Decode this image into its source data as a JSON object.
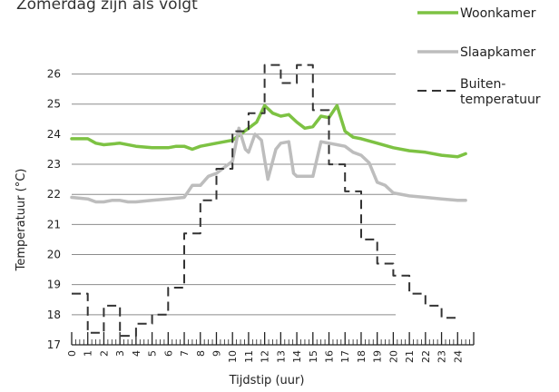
{
  "top_text": "Zomerdag zijn als volgt",
  "colors": {
    "woonkamer": "#7dc243",
    "slaapkamer": "#bdbdbd",
    "buiten": "#333333",
    "grid": "#8c8c8c"
  },
  "chart_data": {
    "type": "line",
    "title": "",
    "xlabel": "Tijdstip (uur)",
    "ylabel": "Temperatuur (°C)",
    "xlim": [
      0,
      25
    ],
    "ylim": [
      17,
      26.5
    ],
    "yticks": [
      17,
      18,
      19,
      20,
      21,
      22,
      23,
      24,
      25,
      26
    ],
    "xticks": [
      0,
      1,
      2,
      3,
      4,
      5,
      6,
      7,
      8,
      9,
      10,
      11,
      12,
      13,
      14,
      15,
      16,
      17,
      18,
      19,
      20,
      21,
      22,
      23,
      24
    ],
    "grid": true,
    "legend": "top-right",
    "series": [
      {
        "name": "Woonkamer",
        "style": "solid",
        "points": [
          [
            0,
            23.85
          ],
          [
            1,
            23.85
          ],
          [
            1.5,
            23.7
          ],
          [
            2,
            23.65
          ],
          [
            3,
            23.7
          ],
          [
            4,
            23.6
          ],
          [
            5,
            23.55
          ],
          [
            6,
            23.55
          ],
          [
            6.5,
            23.6
          ],
          [
            7,
            23.6
          ],
          [
            7.5,
            23.5
          ],
          [
            8,
            23.6
          ],
          [
            9,
            23.7
          ],
          [
            10,
            23.8
          ],
          [
            10.5,
            24.0
          ],
          [
            11,
            24.2
          ],
          [
            11.5,
            24.4
          ],
          [
            12,
            24.95
          ],
          [
            12.5,
            24.7
          ],
          [
            13,
            24.6
          ],
          [
            13.5,
            24.65
          ],
          [
            14,
            24.4
          ],
          [
            14.5,
            24.2
          ],
          [
            15,
            24.25
          ],
          [
            15.5,
            24.6
          ],
          [
            16,
            24.55
          ],
          [
            16.5,
            24.95
          ],
          [
            17,
            24.1
          ],
          [
            17.5,
            23.9
          ],
          [
            18,
            23.85
          ],
          [
            19,
            23.7
          ],
          [
            20,
            23.55
          ],
          [
            21,
            23.45
          ],
          [
            22,
            23.4
          ],
          [
            23,
            23.3
          ],
          [
            24,
            23.25
          ],
          [
            24.5,
            23.35
          ]
        ]
      },
      {
        "name": "Slaapkamer",
        "style": "solid",
        "points": [
          [
            0,
            21.9
          ],
          [
            1,
            21.85
          ],
          [
            1.5,
            21.75
          ],
          [
            2,
            21.75
          ],
          [
            2.5,
            21.8
          ],
          [
            3,
            21.8
          ],
          [
            3.5,
            21.75
          ],
          [
            4,
            21.75
          ],
          [
            5,
            21.8
          ],
          [
            6,
            21.85
          ],
          [
            7,
            21.9
          ],
          [
            7.5,
            22.3
          ],
          [
            8,
            22.3
          ],
          [
            8.5,
            22.6
          ],
          [
            9,
            22.7
          ],
          [
            9.5,
            22.9
          ],
          [
            10,
            23.1
          ],
          [
            10.4,
            24.2
          ],
          [
            10.8,
            23.5
          ],
          [
            11,
            23.4
          ],
          [
            11.4,
            24.0
          ],
          [
            11.8,
            23.8
          ],
          [
            12.2,
            22.5
          ],
          [
            12.7,
            23.5
          ],
          [
            13,
            23.7
          ],
          [
            13.5,
            23.75
          ],
          [
            13.8,
            22.7
          ],
          [
            14,
            22.6
          ],
          [
            15,
            22.6
          ],
          [
            15.5,
            23.75
          ],
          [
            16,
            23.7
          ],
          [
            16.5,
            23.65
          ],
          [
            17,
            23.6
          ],
          [
            17.5,
            23.4
          ],
          [
            18,
            23.3
          ],
          [
            18.5,
            23.05
          ],
          [
            19,
            22.4
          ],
          [
            19.5,
            22.3
          ],
          [
            20,
            22.05
          ],
          [
            21,
            21.95
          ],
          [
            22,
            21.9
          ],
          [
            23,
            21.85
          ],
          [
            24,
            21.8
          ],
          [
            24.5,
            21.8
          ]
        ]
      },
      {
        "name": "Buiten-\ntemperatuur",
        "style": "dashed",
        "points": [
          [
            0,
            18.7
          ],
          [
            1,
            18.7
          ],
          [
            1,
            17.4
          ],
          [
            2,
            17.4
          ],
          [
            2,
            18.3
          ],
          [
            3,
            18.3
          ],
          [
            3,
            17.3
          ],
          [
            4,
            17.3
          ],
          [
            4,
            17.7
          ],
          [
            5,
            17.7
          ],
          [
            5,
            18.0
          ],
          [
            6,
            18.0
          ],
          [
            6,
            18.9
          ],
          [
            7,
            18.9
          ],
          [
            7,
            20.7
          ],
          [
            8,
            20.7
          ],
          [
            8,
            21.8
          ],
          [
            9,
            21.8
          ],
          [
            9,
            22.85
          ],
          [
            10,
            22.85
          ],
          [
            10,
            24.1
          ],
          [
            11,
            24.1
          ],
          [
            11,
            24.7
          ],
          [
            12,
            24.7
          ],
          [
            12,
            26.3
          ],
          [
            13,
            26.3
          ],
          [
            13,
            25.7
          ],
          [
            14,
            25.7
          ],
          [
            14,
            26.3
          ],
          [
            15,
            26.3
          ],
          [
            15,
            24.8
          ],
          [
            16,
            24.8
          ],
          [
            16,
            23.0
          ],
          [
            17,
            23.0
          ],
          [
            17,
            22.1
          ],
          [
            18,
            22.1
          ],
          [
            18,
            20.5
          ],
          [
            19,
            20.5
          ],
          [
            19,
            19.7
          ],
          [
            20,
            19.7
          ],
          [
            20,
            19.3
          ],
          [
            21,
            19.3
          ],
          [
            21,
            18.7
          ],
          [
            22,
            18.7
          ],
          [
            22,
            18.3
          ],
          [
            23,
            18.3
          ],
          [
            23,
            17.9
          ],
          [
            24,
            17.9
          ]
        ]
      }
    ]
  }
}
